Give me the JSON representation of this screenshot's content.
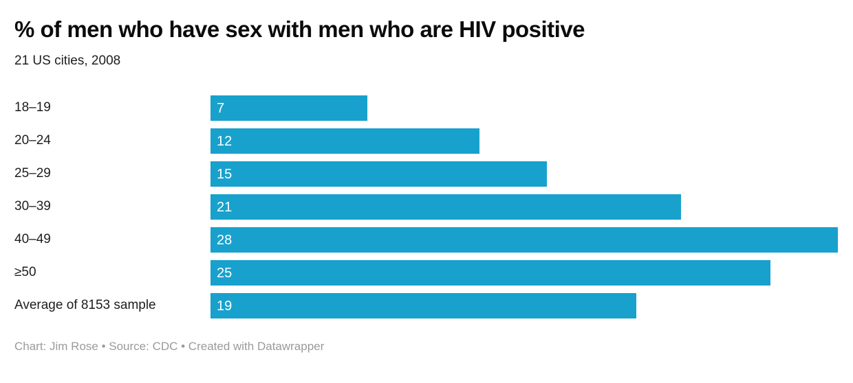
{
  "header": {
    "title": "% of men who have sex with men who are HIV positive",
    "subtitle": "21 US cities, 2008"
  },
  "footer": {
    "text": "Chart: Jim Rose • Source: CDC • Created with Datawrapper"
  },
  "colors": {
    "bar": "#18a1cd",
    "value_label": "#ffffff",
    "title_text": "#0b0b0b",
    "label_text": "#1d1d1d",
    "footer_text": "#9a9a9a",
    "background": "#ffffff"
  },
  "chart_data": {
    "type": "bar",
    "orientation": "horizontal",
    "title": "% of men who have sex with men who are HIV positive",
    "subtitle": "21 US cities, 2008",
    "categories": [
      "18–19",
      "20–24",
      "25–29",
      "30–39",
      "40–49",
      "≥50",
      "Average of 8153 sample"
    ],
    "values": [
      7,
      12,
      15,
      21,
      28,
      25,
      19
    ],
    "xlim": [
      0,
      28
    ],
    "value_labels": "inside-start",
    "grid": false,
    "legend": "none",
    "unit": "%"
  }
}
